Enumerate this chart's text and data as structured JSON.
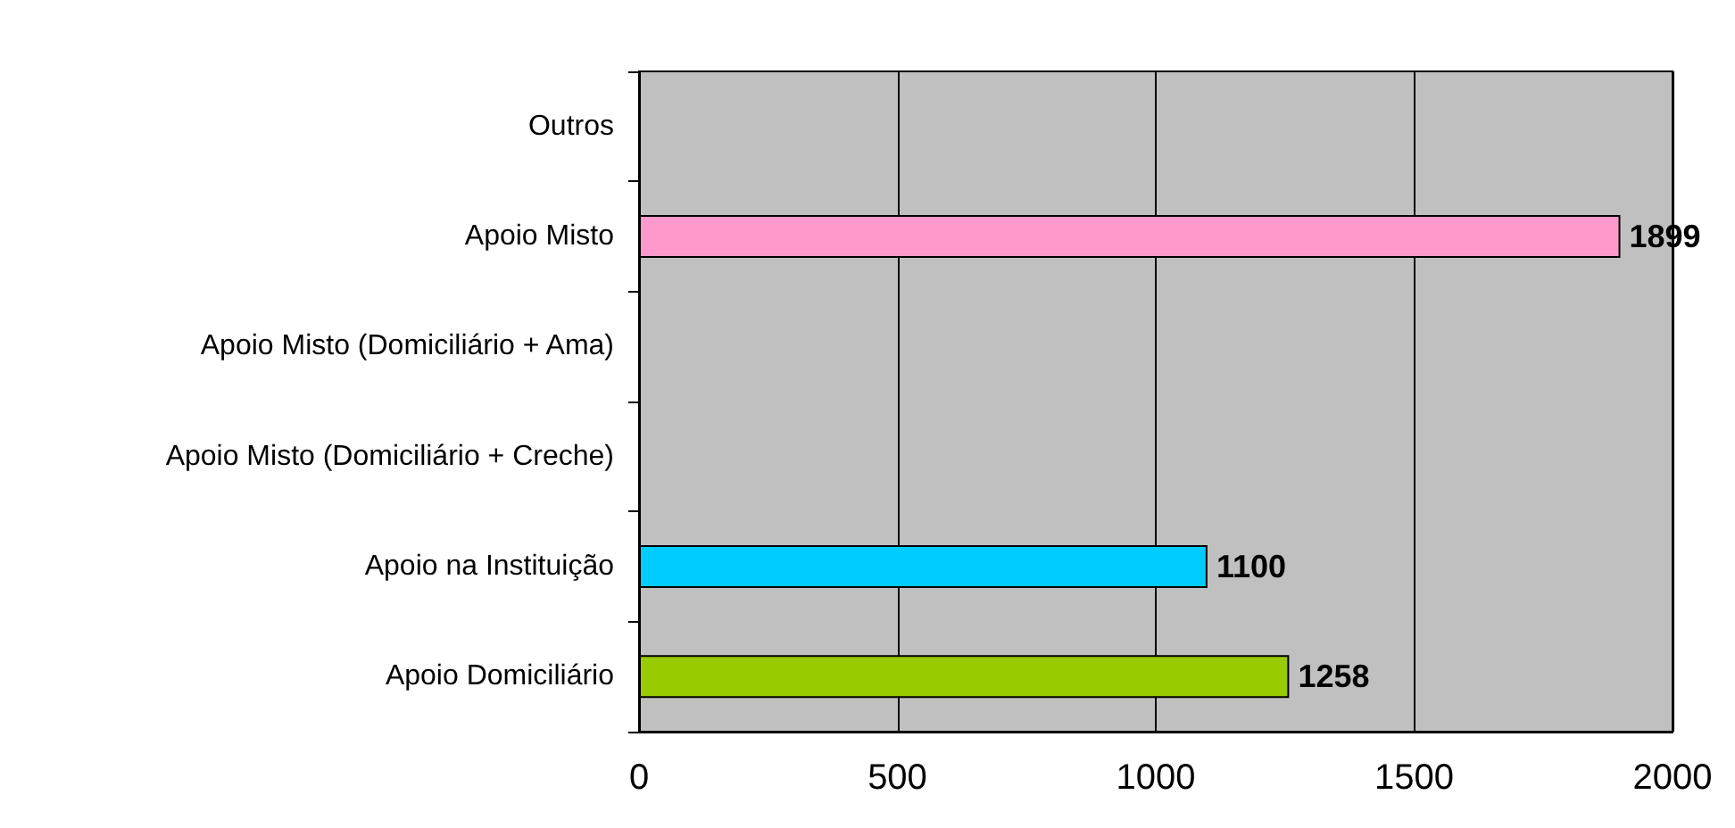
{
  "chart_data": {
    "type": "bar",
    "orientation": "horizontal",
    "categories": [
      "Outros",
      "Apoio Misto",
      "Apoio Misto (Domiciliário + Ama)",
      "Apoio Misto (Domiciliário + Creche)",
      "Apoio na Instituição",
      "Apoio Domiciliário"
    ],
    "values": [
      null,
      1899,
      null,
      null,
      1100,
      1258
    ],
    "colors": [
      null,
      "#ff99cc",
      null,
      null,
      "#00ccff",
      "#99cc00"
    ],
    "xlim": [
      0,
      2000
    ],
    "xticks": [
      0,
      500,
      1000,
      1500,
      2000
    ],
    "grid": "x",
    "data_labels": true
  }
}
